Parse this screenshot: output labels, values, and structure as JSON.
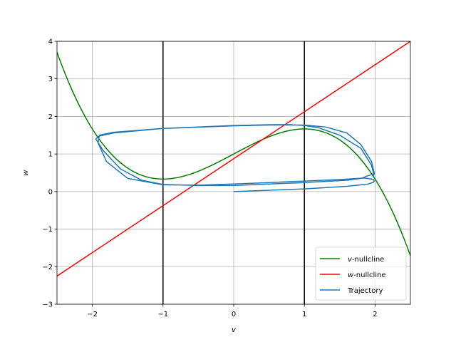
{
  "chart_data": {
    "type": "line",
    "xlabel": "v",
    "ylabel": "w",
    "xlim": [
      -2.5,
      2.5
    ],
    "ylim": [
      -3,
      4
    ],
    "xticks": [
      -2,
      -1,
      0,
      1,
      2
    ],
    "xtick_labels": [
      "−2",
      "−1",
      "0",
      "1",
      "2"
    ],
    "yticks": [
      -3,
      -2,
      -1,
      0,
      1,
      2,
      3,
      4
    ],
    "ytick_labels": [
      "−3",
      "−2",
      "−1",
      "0",
      "1",
      "2",
      "3",
      "4"
    ],
    "grid": true,
    "legend_position": "lower-right",
    "vlines": [
      {
        "x": -1,
        "color": "#000000"
      },
      {
        "x": 1,
        "color": "#000000"
      }
    ],
    "series": [
      {
        "name": "v-nullcline",
        "legend_var": "v",
        "legend_suffix": "-nullcline",
        "color": "#008000",
        "formula": "w = v - v^3/3 + 1",
        "x": [
          -2.5,
          -2.25,
          -2.0,
          -1.75,
          -1.5,
          -1.25,
          -1.0,
          -0.75,
          -0.5,
          -0.25,
          0.0,
          0.25,
          0.5,
          0.75,
          1.0,
          1.25,
          1.5,
          1.75,
          2.0,
          2.25,
          2.5
        ],
        "y": [
          3.71,
          2.55,
          1.67,
          1.04,
          0.63,
          0.4,
          0.33,
          0.39,
          0.54,
          0.76,
          1.0,
          1.24,
          1.46,
          1.61,
          1.67,
          1.6,
          1.38,
          0.96,
          0.33,
          -0.55,
          -1.71
        ]
      },
      {
        "name": "w-nullcline",
        "legend_var": "w",
        "legend_suffix": "-nullcline",
        "color": "#ff0000",
        "formula": "w = 1.25 v + 0.875",
        "x": [
          -2.5,
          2.5
        ],
        "y": [
          -2.25,
          4.0
        ]
      },
      {
        "name": "Trajectory",
        "legend_var": "",
        "legend_suffix": "Trajectory",
        "color": "#1f77b4",
        "x": [
          0.0,
          1.0,
          1.6,
          1.9,
          1.98,
          1.99,
          1.97,
          1.85,
          1.5,
          1.0,
          0.5,
          0.0,
          -0.5,
          -1.0,
          -1.5,
          -1.8,
          -1.92,
          -1.9,
          -1.7,
          -1.0,
          0.0,
          0.5,
          0.8,
          1.0,
          1.2,
          1.5,
          1.8,
          1.95,
          1.98,
          1.9,
          1.8,
          1.6,
          1.2,
          1.0,
          0.5,
          0.0,
          -0.5,
          -1.0,
          -1.3,
          -1.6,
          -1.85,
          -1.95,
          -1.9,
          -1.7,
          -1.0,
          0.0,
          0.5,
          1.0,
          1.3,
          1.6,
          1.8,
          1.95,
          1.99,
          1.97
        ],
        "y": [
          0.0,
          0.07,
          0.14,
          0.2,
          0.25,
          0.29,
          0.33,
          0.36,
          0.32,
          0.28,
          0.24,
          0.2,
          0.17,
          0.18,
          0.35,
          0.8,
          1.3,
          1.5,
          1.58,
          1.68,
          1.76,
          1.78,
          1.78,
          1.76,
          1.7,
          1.5,
          1.15,
          0.7,
          0.47,
          0.42,
          0.35,
          0.3,
          0.26,
          0.24,
          0.2,
          0.16,
          0.16,
          0.19,
          0.3,
          0.6,
          1.1,
          1.4,
          1.48,
          1.56,
          1.68,
          1.75,
          1.77,
          1.77,
          1.72,
          1.56,
          1.25,
          0.8,
          0.48,
          0.4
        ]
      }
    ]
  }
}
